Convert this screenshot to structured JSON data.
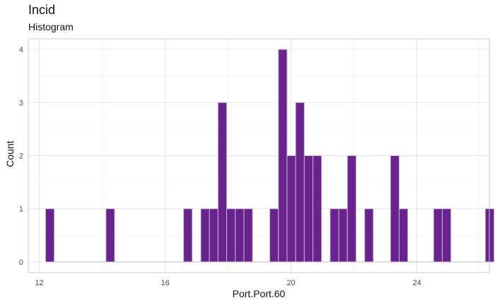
{
  "chart_data": {
    "type": "histogram",
    "title": "Incid",
    "subtitle": "Histogram",
    "xlabel": "Port.Port.60",
    "ylabel": "Count",
    "xlim": [
      11.65,
      26.3
    ],
    "ylim": [
      -0.2,
      4.2
    ],
    "x_ticks": [
      12,
      16,
      20,
      24
    ],
    "y_ticks": [
      0,
      1,
      2,
      3,
      4
    ],
    "bin_width": 0.274,
    "bin_start": 12.2,
    "counts": [
      1,
      0,
      0,
      0,
      0,
      0,
      0,
      1,
      0,
      0,
      0,
      0,
      0,
      0,
      0,
      0,
      1,
      0,
      1,
      1,
      3,
      1,
      1,
      1,
      0,
      0,
      1,
      4,
      2,
      3,
      2,
      2,
      0,
      1,
      1,
      2,
      0,
      1,
      0,
      0,
      2,
      1,
      0,
      0,
      0,
      1,
      1,
      0,
      0,
      0,
      0,
      1
    ],
    "bar_color": "#6a2290",
    "bar_edge_color": "#bdbdbd"
  }
}
